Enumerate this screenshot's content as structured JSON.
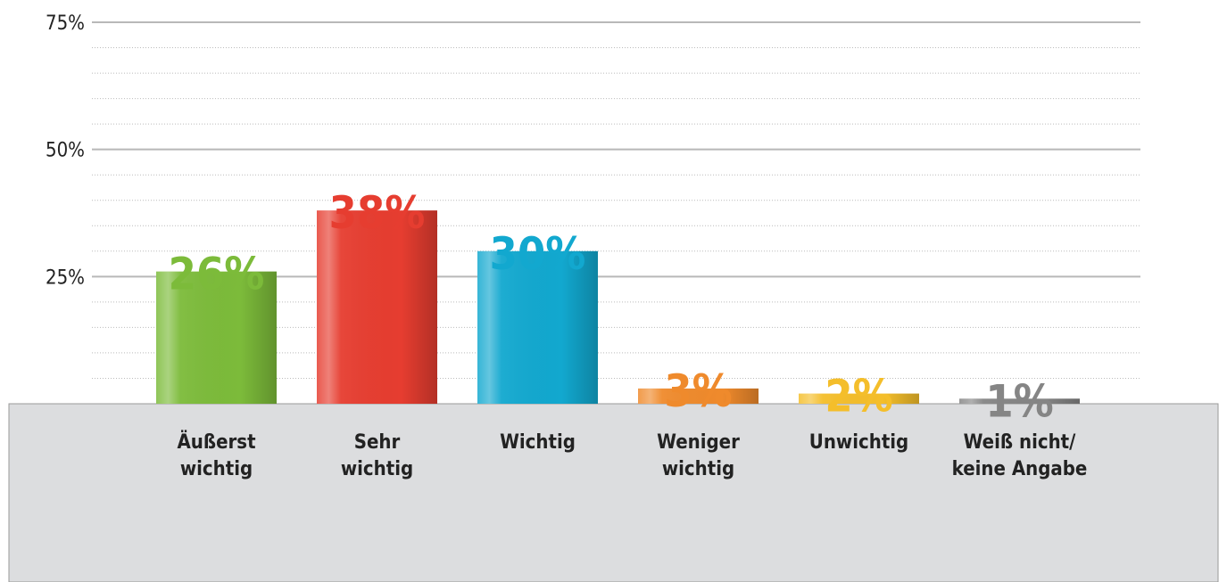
{
  "chart_data": {
    "type": "bar",
    "categories": [
      "Äußerst\nwichtig",
      "Sehr\nwichtig",
      "Wichtig",
      "Weniger\nwichtig",
      "Unwichtig",
      "Weiß nicht/\nkeine Angabe"
    ],
    "values": [
      26,
      38,
      30,
      3,
      2,
      1
    ],
    "value_labels": [
      "26%",
      "38%",
      "30%",
      "3%",
      "2%",
      "1%"
    ],
    "colors": [
      "#7cbb3a",
      "#e63d30",
      "#12a8cf",
      "#ef8a2c",
      "#f4be2b",
      "#858585"
    ],
    "ylim": [
      0,
      75
    ],
    "yticks": [
      {
        "value": 25,
        "label": "25%"
      },
      {
        "value": 50,
        "label": "50%"
      },
      {
        "value": 75,
        "label": "75%"
      }
    ],
    "minor_yticks": [
      5,
      10,
      15,
      20,
      30,
      35,
      40,
      45,
      55,
      60,
      65,
      70
    ],
    "grid": true
  }
}
